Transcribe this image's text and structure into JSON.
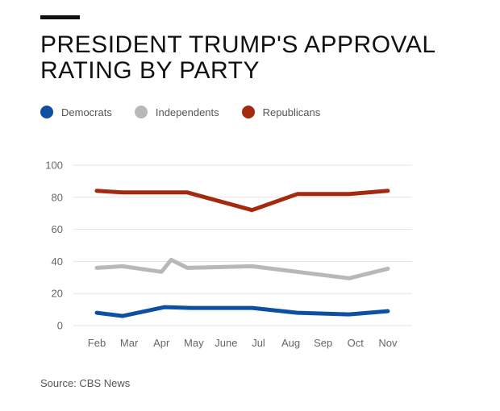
{
  "chart_data": {
    "type": "line",
    "title_lines": [
      "PRESIDENT TRUMP'S APPROVAL",
      "RATING BY PARTY"
    ],
    "xlabel": "",
    "ylabel": "",
    "x_tick_labels": [
      "Feb",
      "Mar",
      "Apr",
      "May",
      "June",
      "Jul",
      "Aug",
      "Sep",
      "Oct",
      "Nov"
    ],
    "y_ticks": [
      0,
      20,
      40,
      60,
      80,
      100
    ],
    "ylim": [
      0,
      100
    ],
    "xlim": [
      0,
      9
    ],
    "grid": true,
    "legend_position": "top-left",
    "series": [
      {
        "name": "Democrats",
        "color": "#0d4fa3",
        "points": [
          [
            0,
            8
          ],
          [
            0.8,
            6
          ],
          [
            2.1,
            11.5
          ],
          [
            2.9,
            11
          ],
          [
            4.8,
            11
          ],
          [
            6.2,
            8
          ],
          [
            7.8,
            7
          ],
          [
            9,
            9
          ]
        ]
      },
      {
        "name": "Independents",
        "color": "#b8b8b8",
        "points": [
          [
            0,
            36
          ],
          [
            0.8,
            37
          ],
          [
            2,
            33.5
          ],
          [
            2.3,
            41
          ],
          [
            2.8,
            36
          ],
          [
            4.8,
            37
          ],
          [
            7.8,
            29.5
          ],
          [
            9,
            35.5
          ]
        ]
      },
      {
        "name": "Republicans",
        "color": "#a3290f",
        "points": [
          [
            0,
            84
          ],
          [
            0.8,
            83
          ],
          [
            2.8,
            83
          ],
          [
            4.8,
            72
          ],
          [
            6.2,
            82
          ],
          [
            7.8,
            82
          ],
          [
            9,
            84
          ]
        ]
      }
    ]
  },
  "source": "Source: CBS News",
  "colors": {
    "accent": "#111111",
    "grid": "#e3e3e3",
    "axis_text": "#666666"
  }
}
